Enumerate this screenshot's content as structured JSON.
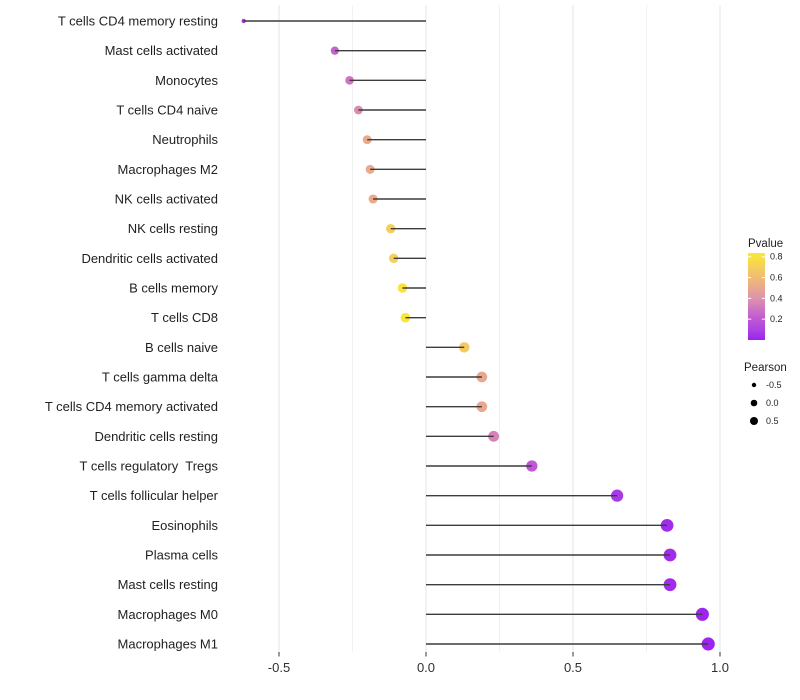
{
  "chart_data": {
    "type": "lollipop",
    "orientation": "horizontal",
    "title": "",
    "xlabel": "",
    "ylabel": "",
    "grid": "vertical-only",
    "xlim": [
      -0.69,
      1.06
    ],
    "xticks": {
      "values": [
        -0.5,
        0.0,
        0.5,
        1.0
      ],
      "labels": [
        "-0.5",
        "0.0",
        "0.5",
        "1.0"
      ]
    },
    "xminor": [
      -0.25,
      0.25,
      0.75
    ],
    "baseline_x": 0.0,
    "rows": [
      {
        "label": "T cells CD4 memory resting",
        "pearson": -0.62,
        "pvalue": 0.05
      },
      {
        "label": "Mast cells activated",
        "pearson": -0.31,
        "pvalue": 0.24
      },
      {
        "label": "Monocytes",
        "pearson": -0.26,
        "pvalue": 0.3
      },
      {
        "label": "T cells CD4 naive",
        "pearson": -0.23,
        "pvalue": 0.38
      },
      {
        "label": "Neutrophils",
        "pearson": -0.2,
        "pvalue": 0.52
      },
      {
        "label": "Macrophages M2",
        "pearson": -0.19,
        "pvalue": 0.52
      },
      {
        "label": "NK cells activated",
        "pearson": -0.18,
        "pvalue": 0.52
      },
      {
        "label": "NK cells resting",
        "pearson": -0.12,
        "pvalue": 0.7
      },
      {
        "label": "Dendritic cells activated",
        "pearson": -0.11,
        "pvalue": 0.7
      },
      {
        "label": "B cells memory",
        "pearson": -0.08,
        "pvalue": 0.8
      },
      {
        "label": "T cells CD8",
        "pearson": -0.07,
        "pvalue": 0.82
      },
      {
        "label": "B cells naive",
        "pearson": 0.13,
        "pvalue": 0.67
      },
      {
        "label": "T cells gamma delta",
        "pearson": 0.19,
        "pvalue": 0.5
      },
      {
        "label": "T cells CD4 memory activated",
        "pearson": 0.19,
        "pvalue": 0.5
      },
      {
        "label": "Dendritic cells resting",
        "pearson": 0.23,
        "pvalue": 0.35
      },
      {
        "label": "T cells regulatory  Tregs",
        "pearson": 0.36,
        "pvalue": 0.2
      },
      {
        "label": "T cells follicular helper",
        "pearson": 0.65,
        "pvalue": 0.07
      },
      {
        "label": "Eosinophils",
        "pearson": 0.82,
        "pvalue": 0.03
      },
      {
        "label": "Plasma cells",
        "pearson": 0.83,
        "pvalue": 0.03
      },
      {
        "label": "Mast cells resting",
        "pearson": 0.83,
        "pvalue": 0.03
      },
      {
        "label": "Macrophages M0",
        "pearson": 0.94,
        "pvalue": 0.01
      },
      {
        "label": "Macrophages M1",
        "pearson": 0.96,
        "pvalue": 0.01
      }
    ],
    "color_legend": {
      "title": "Pvalue",
      "position": "right",
      "range": [
        0,
        0.836
      ],
      "tick_labels": [
        "0.8",
        "0.6",
        "0.4",
        "0.2"
      ],
      "tick_values": [
        0.8,
        0.6,
        0.4,
        0.2
      ],
      "gradient": [
        {
          "v": 0.0,
          "c": "#9C22F0"
        },
        {
          "v": 0.1,
          "c": "#AD44E0"
        },
        {
          "v": 0.2,
          "c": "#BE58D4"
        },
        {
          "v": 0.3,
          "c": "#CE74C4"
        },
        {
          "v": 0.4,
          "c": "#DE93AC"
        },
        {
          "v": 0.5,
          "c": "#E9A78F"
        },
        {
          "v": 0.6,
          "c": "#F0BC74"
        },
        {
          "v": 0.7,
          "c": "#F5CF5C"
        },
        {
          "v": 0.8,
          "c": "#F8E43C"
        },
        {
          "v": 0.836,
          "c": "#F9E832"
        }
      ]
    },
    "size_legend": {
      "title": "Pearson",
      "position": "right",
      "items": [
        {
          "label": "-0.5",
          "r": 2.2
        },
        {
          "label": "0.0",
          "r": 3.3
        },
        {
          "label": "0.5",
          "r": 4.0
        }
      ],
      "dot_color": "#000000"
    },
    "colors": {
      "background": "#ffffff",
      "stem": "#3c3c3c",
      "grid_major": "#e4e4e4",
      "grid_minor": "#f1f1f1",
      "tick_mark": "#333333",
      "axis_text": "#303030",
      "y_label_text": "#1f1f1f",
      "legend_text": "#1f1f1f"
    }
  }
}
